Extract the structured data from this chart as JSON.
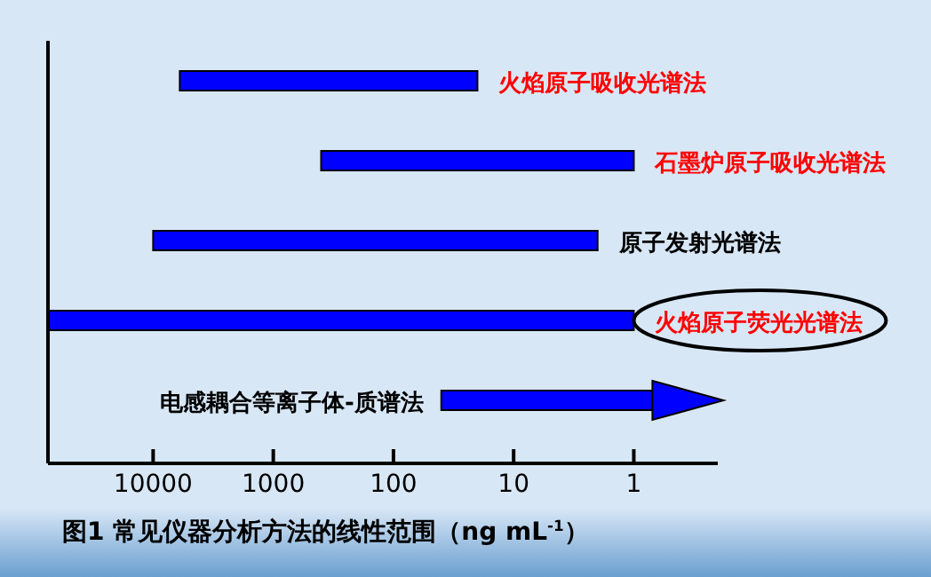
{
  "chart_data": {
    "type": "bar",
    "orientation": "horizontal",
    "title": "图1 常见仪器分析方法的线性范围（ng mL$^{-1}$）",
    "categories": [
      "火焰原子吸收光谱法",
      "石墨炉原子吸收光谱法",
      "原子发射光谱法",
      "火焰原子荧光光谱法",
      "电感耦合等离子体-质谱法"
    ],
    "base": [
      20,
      1,
      2,
      1,
      0.7
    ],
    "values": [
      5980,
      399,
      9998,
      74999,
      39.3
    ],
    "colors": [
      "#0000ff",
      "#0000ff",
      "#0000ff",
      "#0000ff",
      "#0000ff"
    ],
    "xlim": [
      75000,
      0.2
    ],
    "xticks": [
      10000,
      1000,
      100,
      10,
      1
    ],
    "log": "x",
    "tick_labels": "x",
    "legend": false,
    "grid": false
  }
}
